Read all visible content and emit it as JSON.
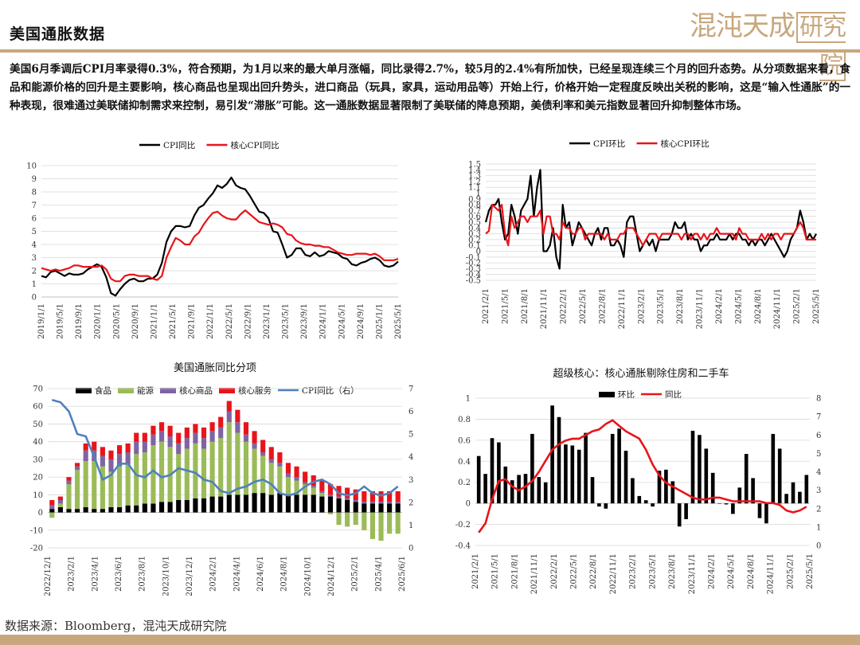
{
  "header": {
    "title": "美国通胀数据",
    "logo_text": "混沌天成研究院",
    "summary": "美国6月季调后CPI月率录得0.3%，符合预期，为1月以来的最大单月涨幅，同比录得2.7%，较5月的2.4%有所加快，已经呈现连续三个月的回升态势。从分项数据来看，食品和能源价格的回升是主要影响，核心商品也呈现出回升势头，进口商品（玩具，家具，运动用品等）开始上行，价格开始一定程度反映出关税的影响，这是“输入性通胀”的一种表现，很难通过美联储抑制需求来控制，易引发“滞胀”可能。这一通胀数据显著限制了美联储的降息预期，美债利率和美元指数显著回升抑制整体市场。"
  },
  "footer": {
    "source": "数据来源：Bloomberg，混沌天成研究院"
  },
  "colors": {
    "accent": "#c8a77e",
    "black": "#000000",
    "red": "#e8141b",
    "green": "#9bbb59",
    "purple": "#8064a2",
    "blue": "#4f81bd"
  },
  "chart_data": [
    {
      "type": "line",
      "title": "",
      "legend": [
        "CPI同比",
        "核心CPI同比"
      ],
      "legend_position": "top",
      "ylim": [
        0,
        10
      ],
      "yticks": [
        0,
        1,
        2,
        3,
        4,
        5,
        6,
        7,
        8,
        9,
        10
      ],
      "xticks": [
        "2019/1/1",
        "2019/5/1",
        "2019/9/1",
        "2020/1/1",
        "2020/5/1",
        "2020/9/1",
        "2021/1/1",
        "2021/5/1",
        "2021/9/1",
        "2022/1/1",
        "2022/5/1",
        "2022/9/1",
        "2023/1/1",
        "2023/5/1",
        "2023/9/1",
        "2024/1/1",
        "2024/5/1",
        "2024/9/1",
        "2025/1/1",
        "2025/5/1"
      ],
      "series": [
        {
          "name": "CPI同比",
          "color": "#000000",
          "values": [
            1.6,
            1.5,
            1.9,
            2.0,
            1.8,
            1.6,
            1.8,
            1.7,
            1.7,
            1.8,
            2.1,
            2.3,
            2.5,
            2.3,
            1.5,
            0.3,
            0.1,
            0.6,
            1.0,
            1.3,
            1.4,
            1.2,
            1.2,
            1.4,
            1.4,
            1.7,
            2.6,
            4.2,
            5.0,
            5.4,
            5.4,
            5.3,
            5.4,
            6.2,
            6.8,
            7.0,
            7.5,
            7.9,
            8.5,
            8.3,
            8.6,
            9.1,
            8.5,
            8.3,
            8.2,
            7.7,
            7.1,
            6.5,
            6.4,
            6.0,
            5.0,
            4.9,
            4.0,
            3.0,
            3.2,
            3.7,
            3.7,
            3.2,
            3.1,
            3.4,
            3.1,
            3.2,
            3.5,
            3.4,
            3.3,
            3.0,
            2.9,
            2.5,
            2.4,
            2.6,
            2.7,
            2.9,
            3.0,
            2.8,
            2.4,
            2.3,
            2.4,
            2.7
          ]
        },
        {
          "name": "核心CPI同比",
          "color": "#e8141b",
          "values": [
            2.2,
            2.1,
            2.0,
            2.1,
            2.0,
            2.1,
            2.2,
            2.4,
            2.4,
            2.3,
            2.3,
            2.3,
            2.3,
            2.4,
            2.1,
            1.4,
            1.2,
            1.2,
            1.6,
            1.7,
            1.7,
            1.6,
            1.6,
            1.6,
            1.4,
            1.3,
            1.6,
            3.0,
            3.8,
            4.5,
            4.3,
            4.0,
            4.0,
            4.6,
            4.9,
            5.5,
            6.0,
            6.4,
            6.5,
            6.2,
            6.0,
            5.9,
            5.9,
            6.3,
            6.6,
            6.3,
            6.0,
            5.7,
            5.6,
            5.5,
            5.6,
            5.5,
            5.3,
            4.8,
            4.7,
            4.3,
            4.1,
            4.0,
            4.0,
            3.9,
            3.9,
            3.8,
            3.8,
            3.6,
            3.4,
            3.3,
            3.2,
            3.2,
            3.3,
            3.3,
            3.3,
            3.2,
            3.3,
            3.1,
            2.8,
            2.8,
            2.8,
            2.9
          ]
        }
      ]
    },
    {
      "type": "line",
      "title": "",
      "legend": [
        "CPI环比",
        "核心CPI环比"
      ],
      "legend_position": "top",
      "ylim": [
        -0.5,
        1.5
      ],
      "yticks": [
        -0.5,
        -0.4,
        -0.3,
        -0.2,
        -0.1,
        0,
        0.1,
        0.2,
        0.3,
        0.4,
        0.5,
        0.6,
        0.7,
        0.8,
        0.9,
        1,
        1.1,
        1.2,
        1.3,
        1.4,
        1.5
      ],
      "xticks": [
        "2021/2/1",
        "2021/5/1",
        "2021/8/1",
        "2021/11/1",
        "2022/2/1",
        "2022/5/1",
        "2022/8/1",
        "2022/11/1",
        "2023/2/1",
        "2023/5/1",
        "2023/8/1",
        "2023/11/1",
        "2024/2/1",
        "2024/5/1",
        "2024/8/1",
        "2024/11/1",
        "2025/2/1",
        "2025/5/1"
      ],
      "series": [
        {
          "name": "CPI环比",
          "color": "#000000",
          "values": [
            0.5,
            0.7,
            0.8,
            0.8,
            0.9,
            0.5,
            0.2,
            0.3,
            0.8,
            0.6,
            0.3,
            0.7,
            0.8,
            0.9,
            1.3,
            0.6,
            1.1,
            1.4,
            0.0,
            0.0,
            0.1,
            0.4,
            -0.1,
            -0.3,
            0.8,
            0.4,
            0.5,
            0.1,
            0.3,
            0.5,
            0.4,
            0.3,
            0.2,
            0.1,
            0.3,
            0.4,
            0.2,
            0.4,
            0.4,
            0.1,
            0.1,
            0.2,
            0.1,
            -0.1,
            0.5,
            0.6,
            0.6,
            0.3,
            0.0,
            0.1,
            0.2,
            0.1,
            0.2,
            0.0,
            0.2,
            0.2,
            0.2,
            0.2,
            0.3,
            0.5,
            0.4,
            0.4,
            0.5,
            0.2,
            0.3,
            0.2,
            0.2,
            0.0,
            0.1,
            0.1,
            0.2,
            0.2,
            0.3,
            0.2,
            0.2,
            0.2,
            0.3,
            0.2,
            0.3,
            0.3,
            0.2,
            0.2,
            0.1,
            0.2,
            0.1,
            0.2,
            0.2,
            0.1,
            0.2,
            0.3,
            0.2,
            0.1,
            0.0,
            -0.1,
            0.0,
            0.2,
            0.3,
            0.4,
            0.7,
            0.5,
            0.2,
            0.3,
            0.2,
            0.3
          ]
        },
        {
          "name": "核心CPI环比",
          "color": "#e8141b",
          "values": [
            0.3,
            0.35,
            0.8,
            0.75,
            0.7,
            0.8,
            0.3,
            0.1,
            0.6,
            0.4,
            0.5,
            0.6,
            0.6,
            0.5,
            0.6,
            0.6,
            0.6,
            0.7,
            0.3,
            0.6,
            0.6,
            0.3,
            0.3,
            0.2,
            0.5,
            0.4,
            0.4,
            0.3,
            0.3,
            0.4,
            0.4,
            0.2,
            0.3,
            0.3,
            0.3,
            0.3,
            0.3,
            0.2,
            0.3,
            0.2,
            0.2,
            0.2,
            0.3,
            0.3,
            0.4,
            0.4,
            0.4,
            0.3,
            0.2,
            0.1,
            0.2,
            0.3,
            0.3,
            0.3,
            0.2,
            0.3,
            0.3,
            0.3,
            0.3,
            0.3,
            0.3,
            0.2,
            0.3,
            0.3,
            0.2,
            0.3,
            0.3,
            0.2,
            0.3,
            0.2,
            0.3,
            0.3,
            0.4,
            0.3,
            0.3,
            0.3,
            0.3,
            0.3,
            0.2,
            0.4,
            0.3,
            0.3,
            0.2,
            0.2,
            0.2,
            0.2,
            0.3,
            0.2,
            0.3,
            0.2,
            0.3,
            0.3,
            0.2,
            0.3,
            0.3,
            0.3,
            0.3,
            0.4,
            0.5,
            0.4,
            0.2,
            0.2,
            0.2,
            0.2
          ]
        }
      ]
    },
    {
      "type": "bar",
      "stacked": true,
      "title": "美国通胀同比分项",
      "legend": [
        "食品",
        "能源",
        "核心商品",
        "核心服务",
        "CPI同比（右）"
      ],
      "legend_position": "top",
      "ylim": [
        -20,
        70
      ],
      "yticks": [
        -20,
        -10,
        0,
        10,
        20,
        30,
        40,
        50,
        60,
        70
      ],
      "y2lim": [
        0,
        7
      ],
      "y2ticks": [
        0,
        1,
        2,
        3,
        4,
        5,
        6,
        7
      ],
      "xticks": [
        "2022/12/1",
        "2023/2/1",
        "2023/4/1",
        "2023/6/1",
        "2023/8/1",
        "2023/10/1",
        "2023/12/1",
        "2024/2/1",
        "2024/4/1",
        "2024/6/1",
        "2024/8/1",
        "2024/10/1",
        "2024/12/1",
        "2025/2/1",
        "2025/4/1",
        "2025/6/1"
      ],
      "series": [
        {
          "name": "食品",
          "color": "#000000",
          "values": [
            2,
            3,
            2,
            2,
            3,
            2,
            2,
            3,
            3,
            4,
            4,
            5,
            5,
            6,
            6,
            7,
            7,
            8,
            8,
            9,
            9,
            10,
            10,
            10,
            11,
            11,
            10,
            11,
            10,
            10,
            10,
            10,
            9,
            9,
            8,
            7,
            6,
            5,
            5,
            5,
            5,
            5
          ]
        },
        {
          "name": "能源",
          "color": "#9bbb59",
          "values": [
            -3,
            2,
            14,
            22,
            26,
            27,
            24,
            20,
            23,
            23,
            29,
            29,
            33,
            34,
            31,
            26,
            29,
            31,
            28,
            31,
            33,
            41,
            35,
            30,
            25,
            21,
            18,
            15,
            10,
            8,
            6,
            4,
            2,
            -1,
            -7,
            -8,
            -7,
            -10,
            -15,
            -16,
            -12,
            -12
          ]
        },
        {
          "name": "核心商品",
          "color": "#8064a2",
          "values": [
            2,
            2,
            2,
            2,
            6,
            6,
            6,
            7,
            7,
            7,
            7,
            6,
            6,
            6,
            6,
            6,
            6,
            6,
            6,
            6,
            6,
            6,
            6,
            4,
            3,
            2,
            2,
            2,
            2,
            2,
            1,
            1,
            1,
            1,
            1,
            1,
            1,
            1,
            1,
            1,
            1,
            1
          ]
        },
        {
          "name": "核心服务",
          "color": "#e8141b",
          "values": [
            3,
            2,
            2,
            2,
            4,
            5,
            5,
            5,
            5,
            5,
            5,
            5,
            5,
            5,
            6,
            6,
            6,
            5,
            6,
            5,
            6,
            6,
            7,
            7,
            7,
            7,
            7,
            6,
            6,
            6,
            6,
            6,
            6,
            6,
            6,
            6,
            6,
            6,
            6,
            6,
            6,
            6
          ]
        },
        {
          "name": "CPI同比（右）",
          "color": "#4f81bd",
          "axis": "right",
          "type": "line",
          "values": [
            6.5,
            6.4,
            6.0,
            5.0,
            4.9,
            4.0,
            3.0,
            3.2,
            3.7,
            3.7,
            3.2,
            3.1,
            3.4,
            3.1,
            3.2,
            3.5,
            3.4,
            3.3,
            3.0,
            2.9,
            2.5,
            2.4,
            2.6,
            2.7,
            2.9,
            3.0,
            2.8,
            2.4,
            2.3,
            2.4,
            2.7,
            2.9,
            3.0,
            2.8,
            2.4,
            2.3,
            2.4,
            2.7,
            2.4,
            2.3,
            2.4,
            2.7
          ]
        }
      ]
    },
    {
      "type": "bar",
      "title": "超级核心：核心通胀剔除住房和二手车",
      "legend": [
        "环比",
        "同比"
      ],
      "legend_position": "top",
      "ylim": [
        -0.4,
        1
      ],
      "yticks": [
        -0.4,
        -0.2,
        0,
        0.2,
        0.4,
        0.6,
        0.8,
        1
      ],
      "y2lim": [
        0,
        8
      ],
      "y2ticks": [
        0,
        1,
        2,
        3,
        4,
        5,
        6,
        7,
        8
      ],
      "xticks": [
        "2021/2/1",
        "2021/5/1",
        "2021/8/1",
        "2021/11/1",
        "2022/2/1",
        "2022/5/1",
        "2022/8/1",
        "2022/11/1",
        "2023/2/1",
        "2023/5/1",
        "2023/8/1",
        "2023/11/1",
        "2024/2/1",
        "2024/5/1",
        "2024/8/1",
        "2024/11/1",
        "2025/2/1",
        "2025/5/1"
      ],
      "series": [
        {
          "name": "环比",
          "color": "#000000",
          "type": "bar",
          "values": [
            0.45,
            0.28,
            0.62,
            0.58,
            0.35,
            0.22,
            0.27,
            0.28,
            0.66,
            0.25,
            0.2,
            0.93,
            0.82,
            0.56,
            0.55,
            0.51,
            0.67,
            0.25,
            -0.03,
            -0.05,
            0.66,
            0.71,
            0.5,
            0.24,
            0.07,
            0.03,
            -0.03,
            0.31,
            0.32,
            0.21,
            -0.22,
            -0.15,
            0.69,
            0.65,
            0.52,
            0.29,
            0.0,
            -0.01,
            -0.1,
            0.15,
            0.47,
            0.24,
            -0.14,
            -0.19,
            0.66,
            0.52,
            0.09,
            0.2,
            0.11,
            0.27
          ]
        },
        {
          "name": "同比",
          "color": "#e8141b",
          "type": "line",
          "axis": "right",
          "values": [
            0.7,
            1.2,
            2.5,
            3.5,
            3.6,
            3.2,
            3.0,
            3.2,
            3.5,
            4.0,
            4.6,
            5.2,
            5.5,
            5.7,
            5.8,
            5.8,
            6.0,
            6.2,
            6.3,
            6.6,
            6.8,
            6.5,
            6.2,
            6.0,
            5.8,
            5.2,
            4.4,
            3.8,
            3.4,
            3.2,
            3.0,
            2.8,
            2.6,
            2.5,
            2.5,
            2.6,
            2.6,
            2.5,
            2.4,
            2.4,
            2.4,
            2.4,
            2.4,
            2.3,
            2.3,
            2.2,
            1.9,
            1.8,
            1.9,
            2.1
          ]
        }
      ]
    }
  ]
}
